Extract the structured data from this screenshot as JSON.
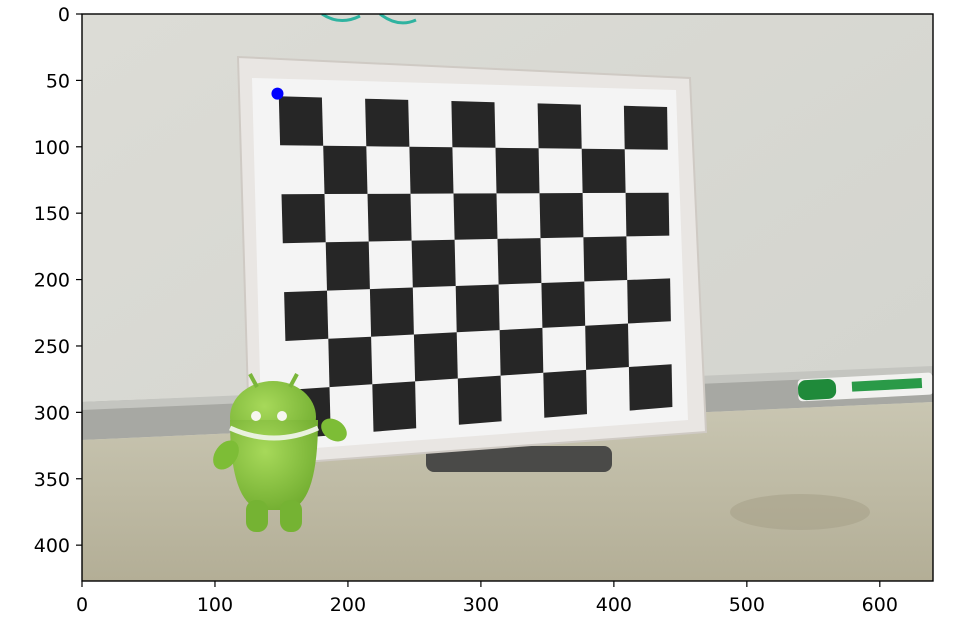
{
  "chart_data": {
    "type": "scatter",
    "title": "",
    "xlabel": "",
    "ylabel": "",
    "xlim": [
      0,
      640
    ],
    "ylim": [
      427,
      0
    ],
    "y_inverted": true,
    "grid": false,
    "x_ticks": [
      0,
      100,
      200,
      300,
      400,
      500,
      600
    ],
    "y_ticks": [
      0,
      50,
      100,
      150,
      200,
      250,
      300,
      350,
      400
    ],
    "image": {
      "content": "photo of a black-and-white checkerboard calibration target on a whiteboard ledge with a green Android figure and a green marker",
      "extent": [
        0,
        640,
        427,
        0
      ]
    },
    "series": [
      {
        "x": [
          147
        ],
        "y": [
          60
        ],
        "color": "#0000ff",
        "marker": "circle"
      }
    ],
    "colors": {
      "checker_dark": "#262626",
      "checker_light": "#f4f4f4",
      "board": "#e9e6e3",
      "wall": "#d9d9d3",
      "table": "#bfbba5",
      "android": "#8cc63f",
      "marker_point": "#0000ff"
    }
  }
}
